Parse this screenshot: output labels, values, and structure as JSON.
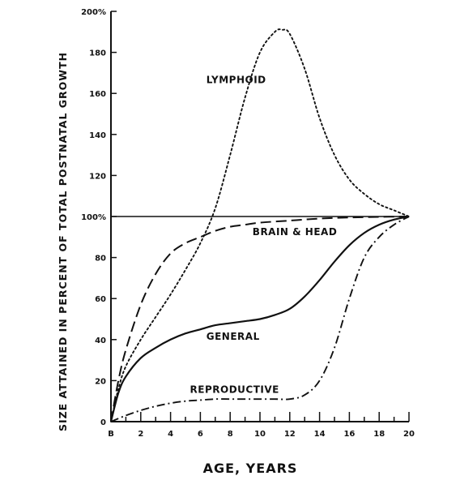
{
  "chart_data": {
    "type": "line",
    "title": "",
    "xlabel": "AGE, YEARS",
    "ylabel": "SIZE ATTAINED IN PERCENT OF TOTAL POSTNATAL GROWTH",
    "xlim": [
      0,
      20
    ],
    "ylim": [
      0,
      200
    ],
    "x_ticks": [
      "B",
      "2",
      "4",
      "6",
      "8",
      "10",
      "12",
      "14",
      "16",
      "18",
      "20"
    ],
    "y_ticks": [
      {
        "value": 0,
        "label": "0"
      },
      {
        "value": 20,
        "label": "20"
      },
      {
        "value": 40,
        "label": "40"
      },
      {
        "value": 60,
        "label": "60"
      },
      {
        "value": 80,
        "label": "80"
      },
      {
        "value": 100,
        "label": "100%"
      },
      {
        "value": 120,
        "label": "120"
      },
      {
        "value": 140,
        "label": "140"
      },
      {
        "value": 160,
        "label": "160"
      },
      {
        "value": 180,
        "label": "180"
      },
      {
        "value": 200,
        "label": "200%"
      }
    ],
    "reference_line": 100,
    "grid": false,
    "series": [
      {
        "name": "LYMPHOID",
        "style": "dotted",
        "x": [
          0,
          0.5,
          1,
          2,
          3,
          4,
          5,
          6,
          7,
          8,
          9,
          10,
          11,
          11.5,
          12,
          13,
          14,
          15,
          16,
          17,
          18,
          19,
          20
        ],
        "y": [
          0,
          16,
          27,
          40,
          51,
          62,
          74,
          87,
          104,
          130,
          158,
          180,
          190,
          191,
          189,
          172,
          148,
          130,
          118,
          111,
          106,
          103,
          100
        ]
      },
      {
        "name": "BRAIN & HEAD",
        "style": "dashed",
        "x": [
          0,
          0.5,
          1,
          2,
          3,
          4,
          5,
          6,
          7,
          8,
          9,
          10,
          12,
          14,
          16,
          18,
          20
        ],
        "y": [
          0,
          20,
          35,
          57,
          72,
          82,
          87,
          90,
          93,
          95,
          96,
          97,
          98,
          99,
          99.5,
          99.8,
          100
        ]
      },
      {
        "name": "GENERAL",
        "style": "solid",
        "x": [
          0,
          0.5,
          1,
          2,
          3,
          4,
          5,
          6,
          7,
          8,
          9,
          10,
          11,
          12,
          13,
          14,
          15,
          16,
          17,
          18,
          19,
          20
        ],
        "y": [
          0,
          14,
          22,
          31,
          36,
          40,
          43,
          45,
          47,
          48,
          49,
          50,
          52,
          55,
          61,
          69,
          78,
          86,
          92,
          96,
          98.5,
          100
        ]
      },
      {
        "name": "REPRODUCTIVE",
        "style": "dash-dot",
        "x": [
          0,
          1,
          2,
          3,
          4,
          5,
          6,
          7,
          8,
          9,
          10,
          11,
          12,
          13,
          14,
          15,
          16,
          17,
          18,
          19,
          20
        ],
        "y": [
          0,
          3,
          5.5,
          7.5,
          9,
          10,
          10.5,
          11,
          11,
          11,
          11,
          11,
          11,
          13,
          20,
          36,
          60,
          80,
          90,
          96,
          100
        ]
      }
    ],
    "annotations": [
      {
        "text": "LYMPHOID",
        "x": 6.4,
        "y": 165
      },
      {
        "text": "BRAIN & HEAD",
        "x": 9.5,
        "y": 91
      },
      {
        "text": "GENERAL",
        "x": 6.4,
        "y": 40
      },
      {
        "text": "REPRODUCTIVE",
        "x": 5.3,
        "y": 14
      }
    ]
  }
}
